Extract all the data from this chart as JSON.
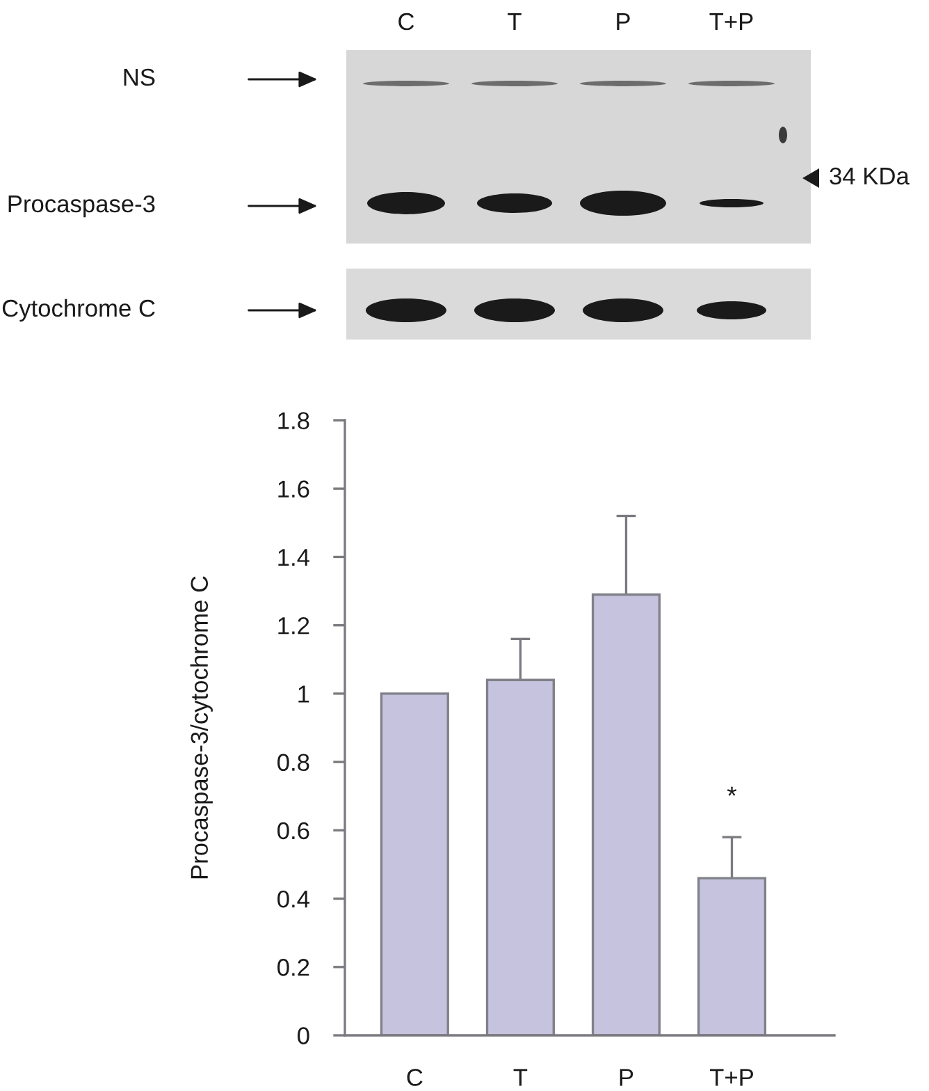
{
  "chart_data": [
    {
      "type": "other",
      "categories": [
        "C",
        "T",
        "P",
        "T+P"
      ],
      "annotations": [
        "NS",
        "Procaspase-3",
        "Cytochrome C",
        "34 KDa"
      ]
    },
    {
      "type": "bar",
      "categories": [
        "C",
        "T",
        "P",
        "T+P"
      ],
      "values": [
        1.0,
        1.04,
        1.29,
        0.46
      ],
      "color": "#c5c3dd",
      "errors": [
        null,
        [
          1.04,
          1.16
        ],
        [
          1.29,
          1.52
        ],
        [
          0.46,
          0.58
        ]
      ],
      "ylabel": "Procaspase-3/cytochrome C",
      "ylim": [
        0,
        1.8
      ],
      "yticks": [
        0,
        0.2,
        0.4,
        0.6,
        0.8,
        1,
        1.2,
        1.4,
        1.6,
        1.8
      ],
      "annotations": [
        "*"
      ]
    }
  ]
}
